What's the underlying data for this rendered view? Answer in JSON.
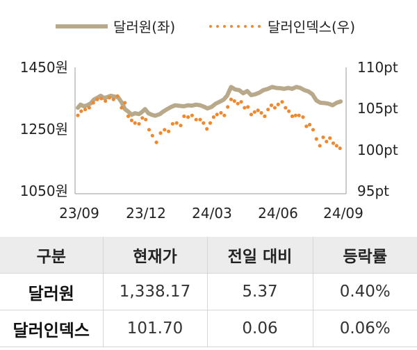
{
  "legend": {
    "series1_label": "달러원(좌)",
    "series2_label": "달러인덱스(우)"
  },
  "colors": {
    "krw": "#b8a98a",
    "dxy": "#f0882e"
  },
  "chart_data": {
    "type": "line",
    "title": "",
    "x_ticks": [
      "23/09",
      "23/12",
      "24/03",
      "24/06",
      "24/09"
    ],
    "y_left": {
      "ticks": [
        "1450원",
        "1250원",
        "1050원"
      ],
      "range": [
        1050,
        1450
      ]
    },
    "y_right": {
      "ticks": [
        "110pt",
        "105pt",
        "100pt",
        "95pt"
      ],
      "range": [
        95,
        110
      ]
    },
    "x_range": [
      "2023-09-01",
      "2024-09-30"
    ],
    "series": [
      {
        "name": "달러원(좌)",
        "axis": "left",
        "style": "solid",
        "points": [
          [
            "2023-09-01",
            1322
          ],
          [
            "2023-09-05",
            1332
          ],
          [
            "2023-09-10",
            1327
          ],
          [
            "2023-09-15",
            1330
          ],
          [
            "2023-09-20",
            1336
          ],
          [
            "2023-09-25",
            1348
          ],
          [
            "2023-10-01",
            1355
          ],
          [
            "2023-10-05",
            1360
          ],
          [
            "2023-10-10",
            1353
          ],
          [
            "2023-10-15",
            1356
          ],
          [
            "2023-10-20",
            1360
          ],
          [
            "2023-10-25",
            1358
          ],
          [
            "2023-10-31",
            1355
          ],
          [
            "2023-11-05",
            1340
          ],
          [
            "2023-11-10",
            1318
          ],
          [
            "2023-11-15",
            1310
          ],
          [
            "2023-11-20",
            1300
          ],
          [
            "2023-11-25",
            1305
          ],
          [
            "2023-12-01",
            1302
          ],
          [
            "2023-12-05",
            1308
          ],
          [
            "2023-12-10",
            1318
          ],
          [
            "2023-12-15",
            1305
          ],
          [
            "2023-12-20",
            1300
          ],
          [
            "2023-12-25",
            1297
          ],
          [
            "2024-01-01",
            1302
          ],
          [
            "2024-01-06",
            1310
          ],
          [
            "2024-01-12",
            1318
          ],
          [
            "2024-01-18",
            1325
          ],
          [
            "2024-01-24",
            1330
          ],
          [
            "2024-01-31",
            1328
          ],
          [
            "2024-02-06",
            1327
          ],
          [
            "2024-02-12",
            1330
          ],
          [
            "2024-02-18",
            1329
          ],
          [
            "2024-02-24",
            1332
          ],
          [
            "2024-03-01",
            1330
          ],
          [
            "2024-03-06",
            1326
          ],
          [
            "2024-03-12",
            1320
          ],
          [
            "2024-03-18",
            1325
          ],
          [
            "2024-03-24",
            1335
          ],
          [
            "2024-03-31",
            1342
          ],
          [
            "2024-04-05",
            1348
          ],
          [
            "2024-04-10",
            1360
          ],
          [
            "2024-04-16",
            1388
          ],
          [
            "2024-04-22",
            1380
          ],
          [
            "2024-04-28",
            1378
          ],
          [
            "2024-05-04",
            1368
          ],
          [
            "2024-05-10",
            1375
          ],
          [
            "2024-05-16",
            1362
          ],
          [
            "2024-05-22",
            1365
          ],
          [
            "2024-05-28",
            1370
          ],
          [
            "2024-06-03",
            1378
          ],
          [
            "2024-06-10",
            1382
          ],
          [
            "2024-06-16",
            1388
          ],
          [
            "2024-06-22",
            1385
          ],
          [
            "2024-06-28",
            1384
          ],
          [
            "2024-07-04",
            1382
          ],
          [
            "2024-07-10",
            1385
          ],
          [
            "2024-07-16",
            1382
          ],
          [
            "2024-07-22",
            1388
          ],
          [
            "2024-07-28",
            1385
          ],
          [
            "2024-08-03",
            1378
          ],
          [
            "2024-08-09",
            1374
          ],
          [
            "2024-08-15",
            1365
          ],
          [
            "2024-08-21",
            1345
          ],
          [
            "2024-08-27",
            1338
          ],
          [
            "2024-09-02",
            1337
          ],
          [
            "2024-09-08",
            1335
          ],
          [
            "2024-09-14",
            1330
          ],
          [
            "2024-09-20",
            1338
          ],
          [
            "2024-09-26",
            1342
          ]
        ]
      },
      {
        "name": "달러인덱스(우)",
        "axis": "right",
        "style": "dotted",
        "points": [
          [
            "2023-09-01",
            104.3
          ],
          [
            "2023-09-06",
            104.8
          ],
          [
            "2023-09-12",
            105.0
          ],
          [
            "2023-09-18",
            105.2
          ],
          [
            "2023-09-24",
            105.8
          ],
          [
            "2023-09-30",
            106.2
          ],
          [
            "2023-10-06",
            106.3
          ],
          [
            "2023-10-12",
            106.0
          ],
          [
            "2023-10-18",
            106.4
          ],
          [
            "2023-10-24",
            106.2
          ],
          [
            "2023-10-30",
            106.6
          ],
          [
            "2023-11-05",
            105.2
          ],
          [
            "2023-11-10",
            105.8
          ],
          [
            "2023-11-15",
            104.2
          ],
          [
            "2023-11-20",
            103.7
          ],
          [
            "2023-11-25",
            103.4
          ],
          [
            "2023-12-01",
            103.3
          ],
          [
            "2023-12-06",
            104.0
          ],
          [
            "2023-12-11",
            103.8
          ],
          [
            "2023-12-16",
            102.6
          ],
          [
            "2023-12-21",
            101.9
          ],
          [
            "2023-12-27",
            101.1
          ],
          [
            "2024-01-02",
            102.2
          ],
          [
            "2024-01-08",
            102.6
          ],
          [
            "2024-01-14",
            102.4
          ],
          [
            "2024-01-20",
            103.3
          ],
          [
            "2024-01-26",
            103.4
          ],
          [
            "2024-02-01",
            103.1
          ],
          [
            "2024-02-06",
            104.2
          ],
          [
            "2024-02-12",
            104.1
          ],
          [
            "2024-02-18",
            104.3
          ],
          [
            "2024-02-24",
            103.8
          ],
          [
            "2024-03-01",
            103.8
          ],
          [
            "2024-03-06",
            103.4
          ],
          [
            "2024-03-11",
            102.7
          ],
          [
            "2024-03-16",
            103.4
          ],
          [
            "2024-03-21",
            104.1
          ],
          [
            "2024-03-26",
            104.4
          ],
          [
            "2024-04-01",
            104.6
          ],
          [
            "2024-04-06",
            104.3
          ],
          [
            "2024-04-11",
            105.3
          ],
          [
            "2024-04-16",
            106.2
          ],
          [
            "2024-04-21",
            106.0
          ],
          [
            "2024-04-26",
            105.7
          ],
          [
            "2024-05-01",
            105.9
          ],
          [
            "2024-05-06",
            105.2
          ],
          [
            "2024-05-11",
            105.3
          ],
          [
            "2024-05-16",
            104.4
          ],
          [
            "2024-05-21",
            104.7
          ],
          [
            "2024-05-26",
            104.9
          ],
          [
            "2024-05-31",
            104.6
          ],
          [
            "2024-06-05",
            104.2
          ],
          [
            "2024-06-10",
            105.0
          ],
          [
            "2024-06-15",
            105.5
          ],
          [
            "2024-06-20",
            105.2
          ],
          [
            "2024-06-25",
            105.6
          ],
          [
            "2024-07-01",
            105.9
          ],
          [
            "2024-07-06",
            105.2
          ],
          [
            "2024-07-11",
            104.8
          ],
          [
            "2024-07-16",
            104.2
          ],
          [
            "2024-07-21",
            104.3
          ],
          [
            "2024-07-26",
            104.3
          ],
          [
            "2024-08-01",
            104.1
          ],
          [
            "2024-08-06",
            103.0
          ],
          [
            "2024-08-11",
            103.2
          ],
          [
            "2024-08-16",
            102.6
          ],
          [
            "2024-08-21",
            101.5
          ],
          [
            "2024-08-26",
            100.7
          ],
          [
            "2024-08-31",
            101.7
          ],
          [
            "2024-09-05",
            101.2
          ],
          [
            "2024-09-10",
            101.6
          ],
          [
            "2024-09-15",
            101.0
          ],
          [
            "2024-09-20",
            100.7
          ],
          [
            "2024-09-25",
            100.4
          ]
        ]
      }
    ]
  },
  "table": {
    "headers": [
      "구분",
      "현재가",
      "전일 대비",
      "등락률"
    ],
    "rows": [
      [
        "달러원",
        "1,338.17",
        "5.37",
        "0.40%"
      ],
      [
        "달러인덱스",
        "101.70",
        "0.06",
        "0.06%"
      ]
    ]
  }
}
